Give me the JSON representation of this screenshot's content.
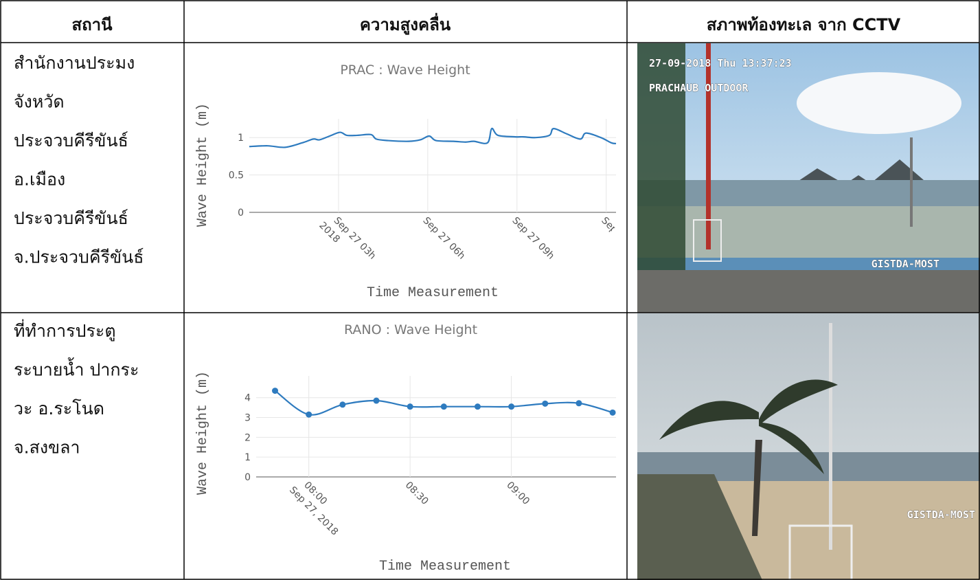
{
  "header": [
    "สถานี",
    "ความสูงคลื่น",
    "สภาพท้องทะเล จาก CCTV"
  ],
  "rows": [
    {
      "station": [
        "สำนักงานประมง",
        "จังหวัด",
        "ประจวบคีรีขันธ์",
        "อ.เมือง",
        "ประจวบคีรีขันธ์",
        "จ.ประจวบคีรีขันธ์"
      ],
      "chart": {
        "type": "line",
        "title": "PRAC : Wave Height",
        "x_label": "Time Measurement",
        "y_label": "Wave Height (m)",
        "color": "#2e7bbf",
        "markers": false,
        "x": [
          0,
          0.62,
          1.2,
          1.78,
          2.15,
          2.36,
          2.7,
          3.05,
          3.28,
          3.63,
          4.09,
          4.27,
          4.67,
          5.36,
          5.75,
          6.05,
          6.28,
          6.86,
          7.27,
          7.55,
          8.01,
          8.15,
          8.36,
          8.94,
          9.21,
          9.63,
          10.09,
          10.23,
          10.67,
          11.13,
          11.32,
          11.82,
          12.17,
          12.33
        ],
        "values": [
          0.88,
          0.89,
          0.87,
          0.93,
          0.98,
          0.97,
          1.02,
          1.07,
          1.03,
          1.03,
          1.04,
          0.98,
          0.96,
          0.95,
          0.97,
          1.02,
          0.96,
          0.95,
          0.94,
          0.95,
          0.93,
          1.12,
          1.03,
          1.01,
          1.01,
          1.0,
          1.03,
          1.12,
          1.05,
          0.98,
          1.06,
          1.0,
          0.93,
          0.92
        ],
        "xlim": [
          0,
          12.33
        ],
        "xticks": [
          {
            "value": 3,
            "label": [
              "Sep 27 03h",
              "2018"
            ]
          },
          {
            "value": 6,
            "label": "Sep 27 06h"
          },
          {
            "value": 9,
            "label": "Sep 27 09h"
          },
          {
            "value": 12,
            "label": "Sep"
          }
        ],
        "ylim": [
          0,
          1.25
        ],
        "yticks": [
          0,
          0.5,
          1
        ],
        "grid": true
      },
      "cctv": {
        "overlay": [
          "27-09-2018 Thu 13:37:23",
          "PRACHAUB OUTDOOR",
          "GISTDA-MOST"
        ]
      }
    },
    {
      "station": [
        "ที่ทำการประตู",
        "ระบายน้ำ ปากระ",
        "วะ อ.ระโนด",
        "จ.สงขลา"
      ],
      "chart": {
        "type": "line",
        "title": "RANO : Wave Height",
        "x_label": "Time Measurement",
        "y_label": "Wave Height (m)",
        "color": "#2e7bbf",
        "markers": true,
        "x": [
          470,
          480,
          490,
          500,
          510,
          520,
          530,
          540,
          550,
          560,
          570
        ],
        "values": [
          4.35,
          3.15,
          3.65,
          3.85,
          3.55,
          3.55,
          3.55,
          3.55,
          3.7,
          3.72,
          3.25
        ],
        "xlim": [
          464.4,
          571
        ],
        "xticks": [
          {
            "value": 480,
            "label": [
              "08:00",
              "Sep 27, 2018"
            ]
          },
          {
            "value": 510,
            "label": "08:30"
          },
          {
            "value": 540,
            "label": "09:00"
          }
        ],
        "ylim": [
          0,
          5.1
        ],
        "yticks": [
          0,
          1,
          2,
          3,
          4
        ],
        "grid": true
      },
      "cctv": {
        "overlay": [
          "GISTDA-MOST"
        ]
      }
    }
  ]
}
